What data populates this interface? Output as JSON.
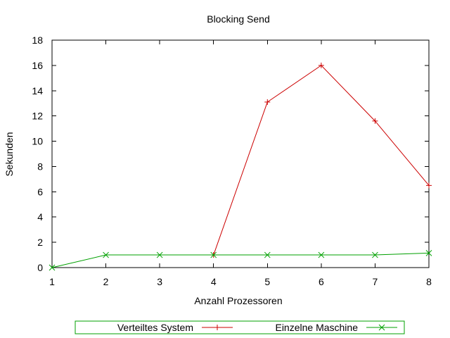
{
  "chart_data": {
    "type": "line",
    "title": "Blocking Send",
    "xlabel": "Anzahl Prozessoren",
    "ylabel": "Sekunden",
    "x": [
      1,
      2,
      3,
      4,
      5,
      6,
      7,
      8
    ],
    "xlim": [
      1,
      8
    ],
    "ylim": [
      0,
      18
    ],
    "x_ticks": [
      "1",
      "2",
      "3",
      "4",
      "5",
      "6",
      "7",
      "8"
    ],
    "y_ticks": [
      "0",
      "2",
      "4",
      "6",
      "8",
      "10",
      "12",
      "14",
      "16",
      "18"
    ],
    "grid": false,
    "legend_position": "bottom",
    "series": [
      {
        "name": "Verteiltes System",
        "x": [
          4,
          5,
          6,
          7,
          8
        ],
        "values": [
          1.0,
          13.1,
          16.0,
          11.6,
          6.5
        ],
        "color": "#cc0000",
        "marker": "plus"
      },
      {
        "name": "Einzelne Maschine",
        "x": [
          1,
          2,
          3,
          4,
          5,
          6,
          7,
          8
        ],
        "values": [
          0.0,
          1.0,
          1.0,
          1.0,
          1.0,
          1.0,
          1.0,
          1.15
        ],
        "color": "#00a000",
        "marker": "cross"
      }
    ]
  }
}
